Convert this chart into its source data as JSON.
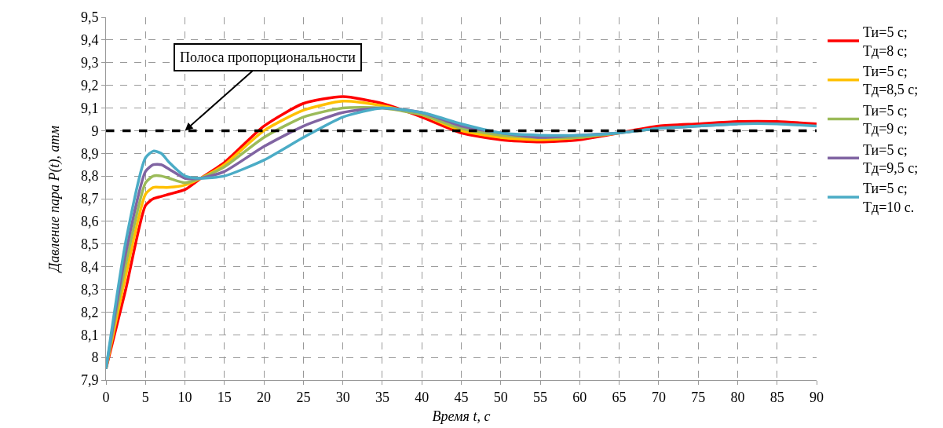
{
  "chart_data": {
    "type": "line",
    "xlabel": "Время t, с",
    "ylabel": "Давление пара P(t), атм",
    "x": [
      0,
      2.5,
      5,
      6,
      7,
      8,
      10,
      12,
      15,
      20,
      25,
      30,
      35,
      40,
      45,
      50,
      55,
      60,
      65,
      70,
      75,
      80,
      85,
      90
    ],
    "series": [
      {
        "name": "Ти=5 с;\nТд=8 с;",
        "color": "#ff0000",
        "values": [
          7.95,
          8.3,
          8.67,
          8.7,
          8.71,
          8.72,
          8.74,
          8.79,
          8.86,
          9.02,
          9.12,
          9.15,
          9.12,
          9.06,
          8.99,
          8.96,
          8.95,
          8.96,
          8.99,
          9.02,
          9.03,
          9.04,
          9.04,
          9.03
        ]
      },
      {
        "name": "Ти=5 с;\nТд=8,5 с;",
        "color": "#ffc000",
        "values": [
          7.95,
          8.36,
          8.72,
          8.75,
          8.75,
          8.75,
          8.76,
          8.79,
          8.85,
          9.0,
          9.09,
          9.13,
          9.11,
          9.07,
          9.0,
          8.97,
          8.96,
          8.97,
          8.99,
          null,
          null,
          null,
          null,
          null
        ]
      },
      {
        "name": "Ти=5 с;\nТд=9 с;",
        "color": "#9bbb59",
        "values": [
          7.95,
          8.41,
          8.77,
          8.8,
          8.8,
          8.79,
          8.77,
          8.79,
          8.84,
          8.97,
          9.06,
          9.1,
          9.1,
          9.07,
          9.01,
          8.98,
          8.97,
          8.97,
          8.99,
          9.01,
          null,
          null,
          null,
          null
        ]
      },
      {
        "name": "Ти=5 с;\nТд=9,5 с;",
        "color": "#8064a2",
        "values": [
          7.95,
          8.46,
          8.82,
          8.85,
          8.85,
          8.83,
          8.79,
          8.79,
          8.82,
          8.93,
          9.02,
          9.08,
          9.1,
          9.08,
          9.02,
          8.99,
          8.97,
          8.98,
          8.99,
          9.01,
          9.02,
          9.03,
          null,
          null
        ]
      },
      {
        "name": "Ти=5 с;\nТд=10 с.",
        "color": "#4bacc6",
        "values": [
          7.95,
          8.51,
          8.88,
          8.91,
          8.9,
          8.86,
          8.8,
          8.79,
          8.8,
          8.87,
          8.97,
          9.06,
          9.1,
          9.08,
          9.03,
          8.99,
          8.98,
          8.98,
          8.99,
          9.01,
          9.02,
          9.03,
          9.03,
          9.02
        ]
      }
    ],
    "xlim": [
      0,
      90
    ],
    "xticks": [
      0,
      5,
      10,
      15,
      20,
      25,
      30,
      35,
      40,
      45,
      50,
      55,
      60,
      65,
      70,
      75,
      80,
      85,
      90
    ],
    "ylim": [
      7.9,
      9.5
    ],
    "yticks": [
      {
        "value": 7.9,
        "label": "7,9"
      },
      {
        "value": 8,
        "label": "8"
      },
      {
        "value": 8.1,
        "label": "8,1"
      },
      {
        "value": 8.2,
        "label": "8,2"
      },
      {
        "value": 8.3,
        "label": "8,3"
      },
      {
        "value": 8.4,
        "label": "8,4"
      },
      {
        "value": 8.5,
        "label": "8,5"
      },
      {
        "value": 8.6,
        "label": "8,6"
      },
      {
        "value": 8.7,
        "label": "8,7"
      },
      {
        "value": 8.8,
        "label": "8,8"
      },
      {
        "value": 8.9,
        "label": "8,9"
      },
      {
        "value": 9,
        "label": "9"
      },
      {
        "value": 9.1,
        "label": "9,1"
      },
      {
        "value": 9.2,
        "label": "9,2"
      },
      {
        "value": 9.3,
        "label": "9,3"
      },
      {
        "value": 9.4,
        "label": "9,4"
      },
      {
        "value": 9.5,
        "label": "9,5"
      }
    ],
    "ref_lines": [
      {
        "axis": "y",
        "value": 9,
        "color": "#000000",
        "line_style": "dashed"
      }
    ],
    "annotations": [
      {
        "text": "Полоса пропорциональности",
        "x": 10,
        "y": 9
      }
    ],
    "grid": true,
    "legend": "right",
    "marker": "none",
    "line_style": "solid"
  }
}
